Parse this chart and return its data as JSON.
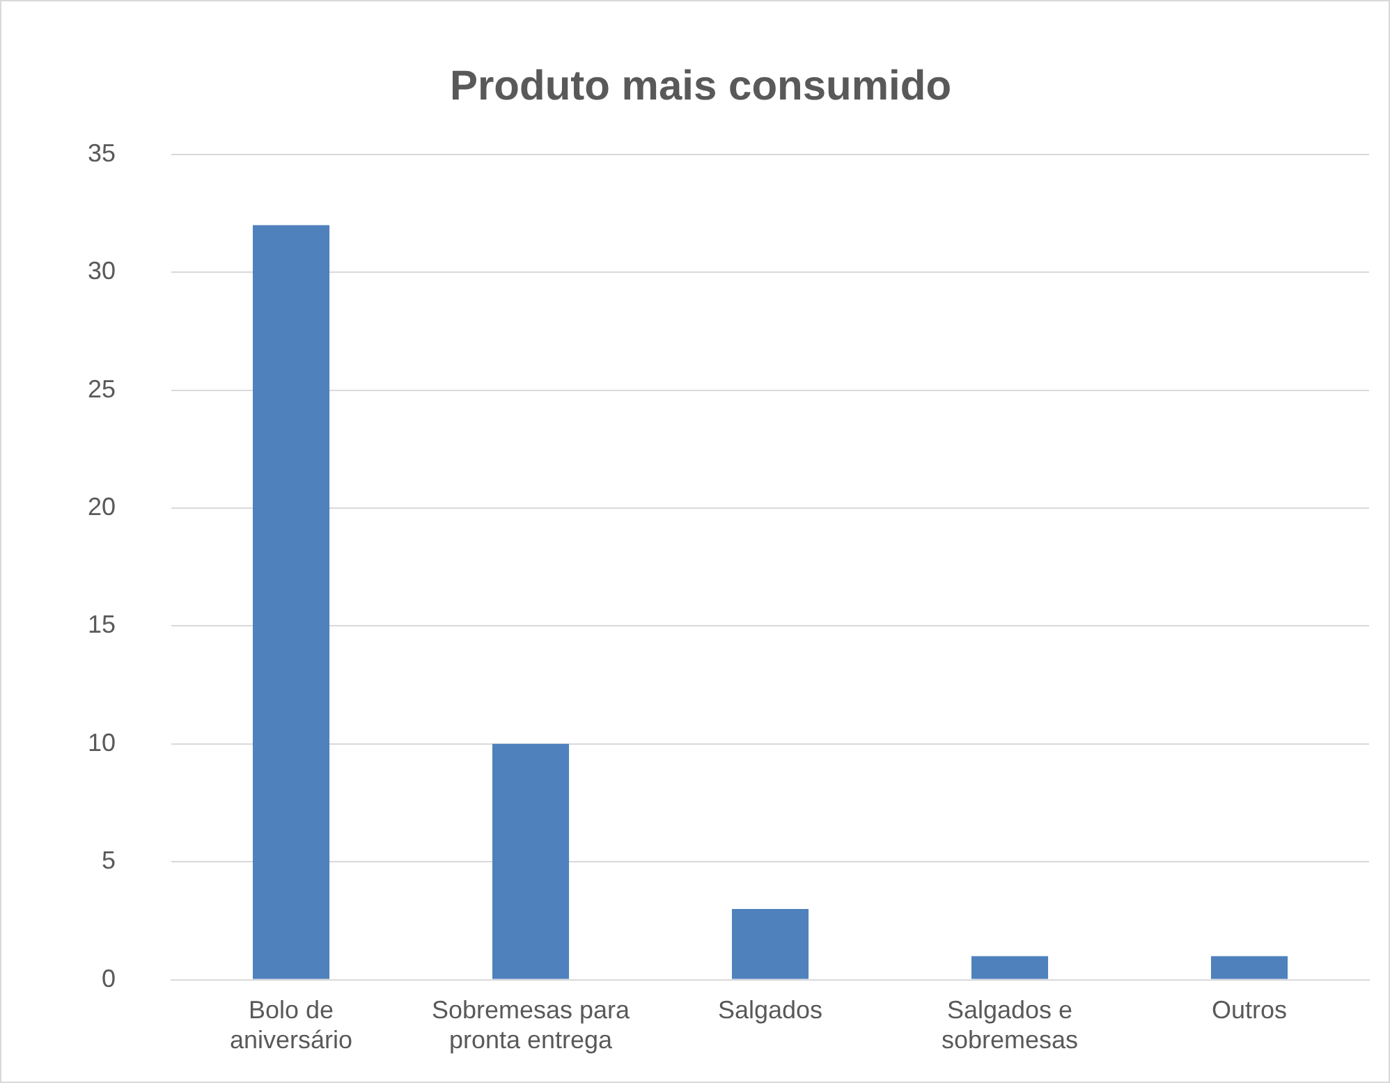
{
  "chart_data": {
    "type": "bar",
    "title": "Produto mais consumido",
    "categories": [
      "Bolo de aniversário",
      "Sobremesas para pronta entrega",
      "Salgados",
      "Salgados e sobremesas",
      "Outros"
    ],
    "values": [
      32,
      10,
      3,
      1,
      1
    ],
    "color": "#4f81bd",
    "ylim": [
      0,
      35
    ],
    "yticks": [
      0,
      5,
      10,
      15,
      20,
      25,
      30,
      35
    ],
    "grid": "y",
    "legend": false
  }
}
